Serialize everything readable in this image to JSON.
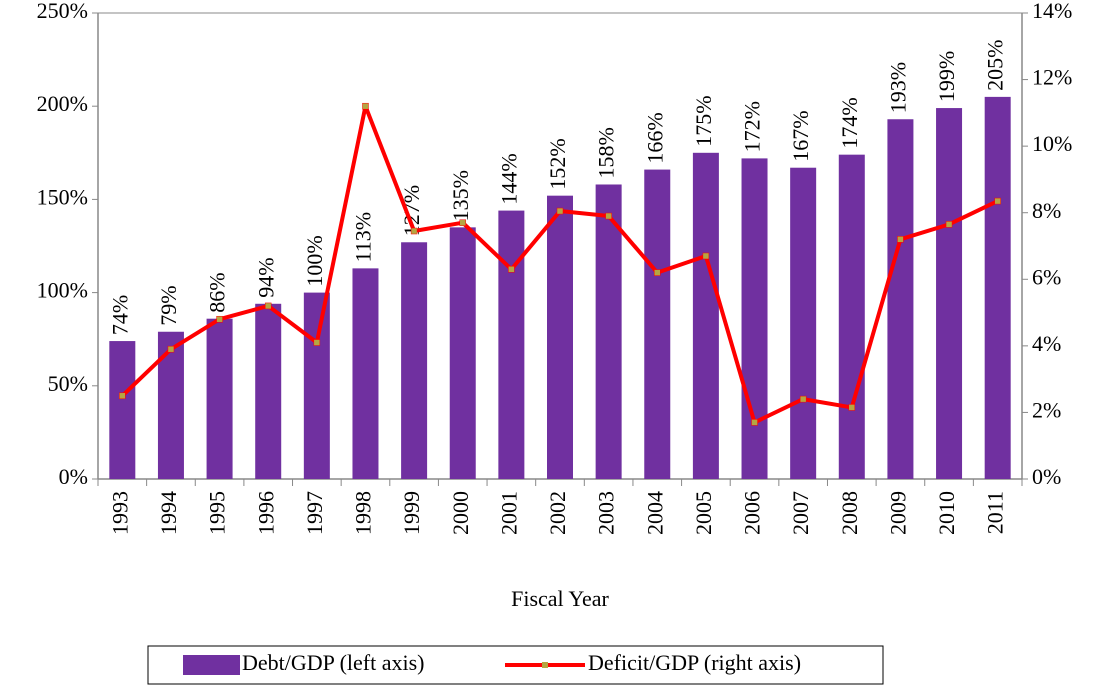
{
  "chart_data": {
    "type": "bar",
    "x_label": "Fiscal Year",
    "categories": [
      "1993",
      "1994",
      "1995",
      "1996",
      "1997",
      "1998",
      "1999",
      "2000",
      "2001",
      "2002",
      "2003",
      "2004",
      "2005",
      "2006",
      "2007",
      "2008",
      "2009",
      "2010",
      "2011"
    ],
    "series": [
      {
        "name": "Debt/GDP (left axis)",
        "type": "bar",
        "color": "#7030a0",
        "values": [
          74,
          79,
          86,
          94,
          100,
          113,
          127,
          135,
          144,
          152,
          158,
          166,
          175,
          172,
          167,
          174,
          193,
          199,
          205
        ],
        "value_labels": [
          "74%",
          "79%",
          "86%",
          "94%",
          "100%",
          "113%",
          "127%",
          "135%",
          "144%",
          "152%",
          "158%",
          "166%",
          "175%",
          "172%",
          "167%",
          "174%",
          "193%",
          "199%",
          "205%"
        ]
      },
      {
        "name": "Deficit/GDP (right axis)",
        "type": "line",
        "axis": "y2",
        "color": "#ff0000",
        "marker_color": "#b5a642",
        "values": [
          2.5,
          3.9,
          4.8,
          5.2,
          4.1,
          11.2,
          7.45,
          7.7,
          6.3,
          8.05,
          7.9,
          6.2,
          6.7,
          1.7,
          2.4,
          2.15,
          7.2,
          7.65,
          8.35
        ]
      }
    ],
    "ylim": [
      0,
      250
    ],
    "yticks": [
      {
        "value": 0,
        "label": "0%"
      },
      {
        "value": 50,
        "label": "50%"
      },
      {
        "value": 100,
        "label": "100%"
      },
      {
        "value": 150,
        "label": "150%"
      },
      {
        "value": 200,
        "label": "200%"
      },
      {
        "value": 250,
        "label": "250%"
      }
    ],
    "y2lim": [
      0,
      14
    ],
    "y2ticks": [
      {
        "value": 0,
        "label": "0%"
      },
      {
        "value": 2,
        "label": "2%"
      },
      {
        "value": 4,
        "label": "4%"
      },
      {
        "value": 6,
        "label": "6%"
      },
      {
        "value": 8,
        "label": "8%"
      },
      {
        "value": 10,
        "label": "10%"
      },
      {
        "value": 12,
        "label": "12%"
      },
      {
        "value": 14,
        "label": "14%"
      }
    ],
    "legend": "bottom"
  }
}
